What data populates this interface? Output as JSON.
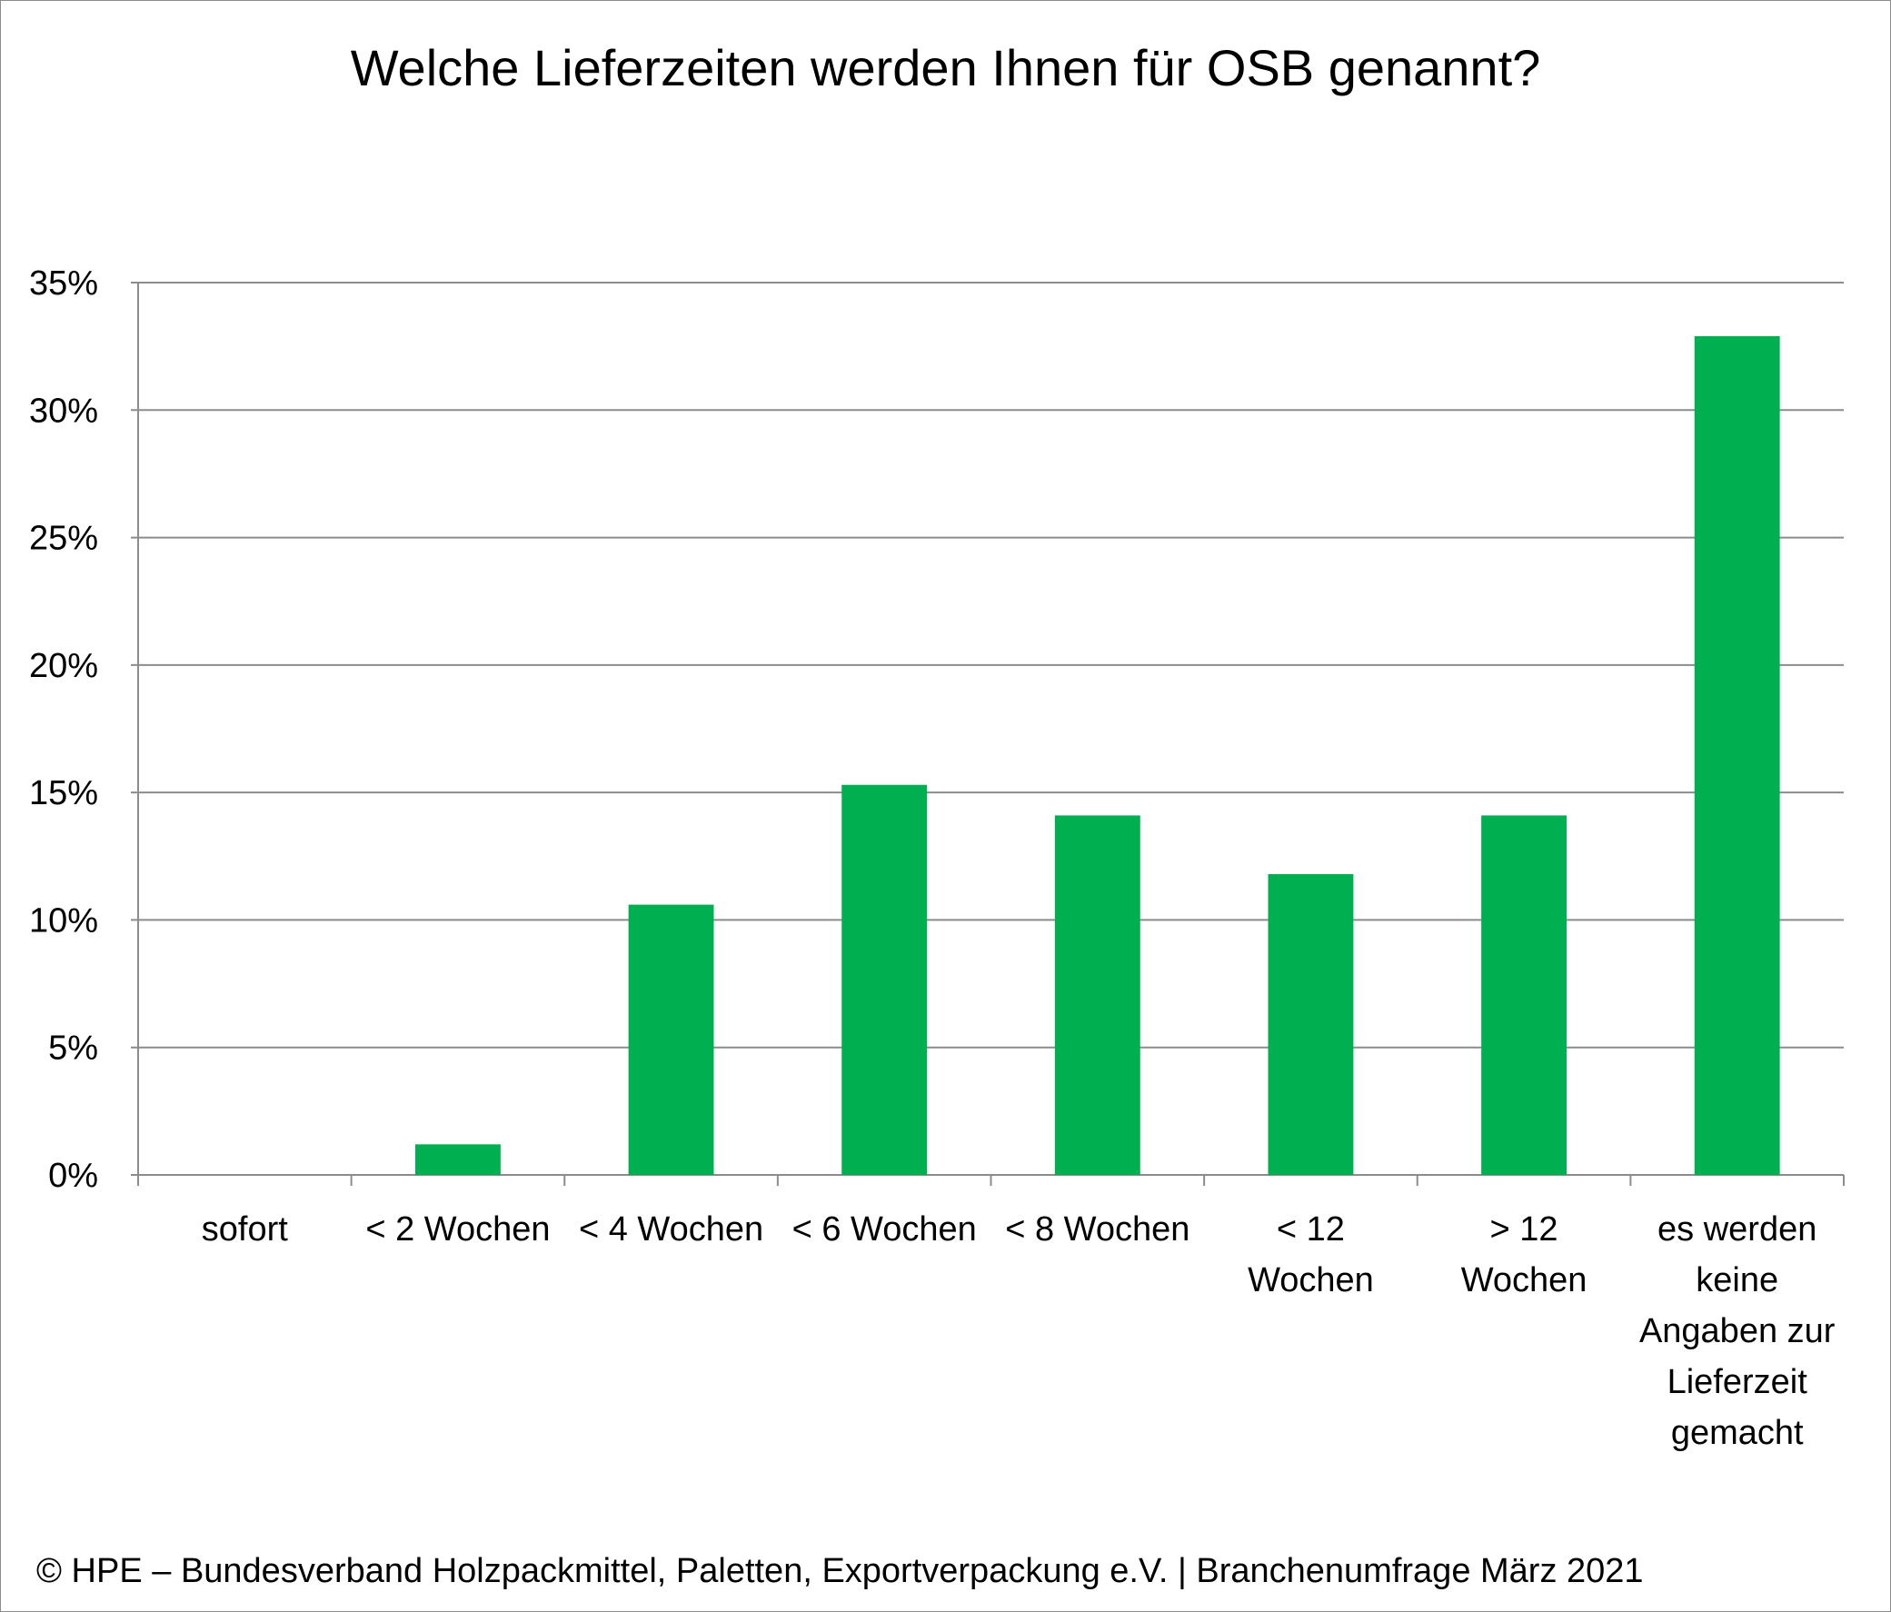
{
  "title": "Welche Lieferzeiten werden Ihnen für OSB genannt?",
  "footer": "© HPE – Bundesverband Holzpackmittel, Paletten, Exportverpackung e.V.  | Branchenumfrage März 2021",
  "colors": {
    "bar": "#00b050",
    "grid": "#8c8c8c",
    "axis": "#8c8c8c"
  },
  "chart_data": {
    "type": "bar",
    "categories": [
      [
        "sofort"
      ],
      [
        "< 2 Wochen"
      ],
      [
        "< 4 Wochen"
      ],
      [
        "< 6 Wochen"
      ],
      [
        "< 8 Wochen"
      ],
      [
        "< 12",
        "Wochen"
      ],
      [
        "> 12",
        "Wochen"
      ],
      [
        "es werden",
        "keine",
        "Angaben zur",
        "Lieferzeit",
        "gemacht"
      ]
    ],
    "values": [
      0,
      1.2,
      10.6,
      15.3,
      14.1,
      11.8,
      14.1,
      32.9
    ],
    "ylim": [
      0,
      35
    ],
    "yticks": [
      0,
      5,
      10,
      15,
      20,
      25,
      30,
      35
    ],
    "tick_suffix": "%",
    "grid": true,
    "legend": "none"
  }
}
